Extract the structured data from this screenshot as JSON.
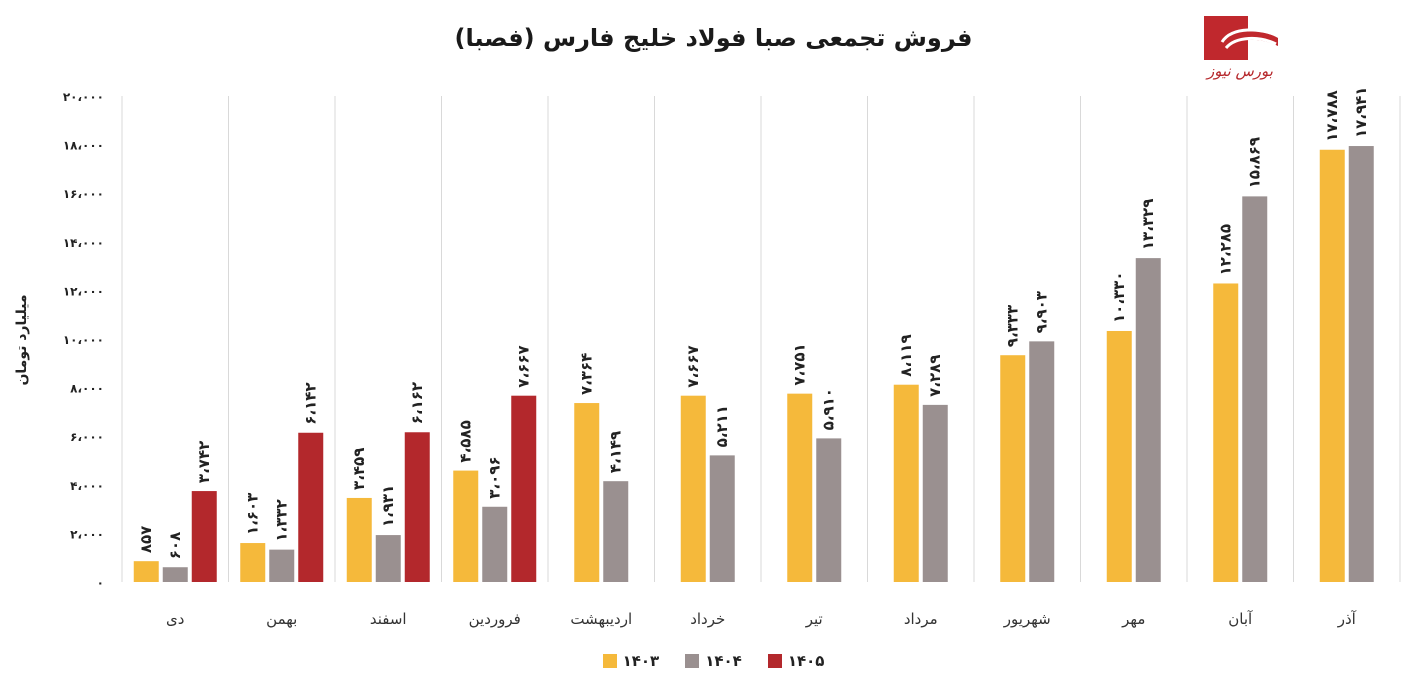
{
  "brand": {
    "logo_text": "بورس نیوز",
    "color": "#c0282d"
  },
  "chart_data": {
    "type": "bar",
    "title": "فروش تجمعی صبا فولاد خلیج فارس (فصبا)",
    "ylabel": "میلیارد تومان",
    "xlabel": "",
    "ylim": [
      0,
      20000
    ],
    "yticks": [
      0,
      2000,
      4000,
      6000,
      8000,
      10000,
      12000,
      14000,
      16000,
      18000,
      20000
    ],
    "ytick_labels": [
      "۰",
      "۲،۰۰۰",
      "۴،۰۰۰",
      "۶،۰۰۰",
      "۸،۰۰۰",
      "۱۰،۰۰۰",
      "۱۲،۰۰۰",
      "۱۴،۰۰۰",
      "۱۶،۰۰۰",
      "۱۸،۰۰۰",
      "۲۰،۰۰۰"
    ],
    "categories": [
      "دی",
      "بهمن",
      "اسفند",
      "فروردین",
      "اردیبهشت",
      "خرداد",
      "تیر",
      "مرداد",
      "شهریور",
      "مهر",
      "آبان",
      "آذر"
    ],
    "series": [
      {
        "name": "۱۴۰۳",
        "color": "#f5b93b",
        "values": [
          857,
          1603,
          3459,
          4585,
          7364,
          7667,
          7751,
          8119,
          9333,
          10330,
          12285,
          17788
        ],
        "labels": [
          "۸۵۷",
          "۱،۶۰۳",
          "۳،۴۵۹",
          "۴،۵۸۵",
          "۷،۳۶۴",
          "۷،۶۶۷",
          "۷،۷۵۱",
          "۸،۱۱۹",
          "۹،۳۳۳",
          "۱۰،۳۳۰",
          "۱۲،۲۸۵",
          "۱۷،۷۸۸"
        ]
      },
      {
        "name": "۱۴۰۴",
        "color": "#9a9090",
        "values": [
          608,
          1332,
          1931,
          3096,
          4149,
          5211,
          5910,
          7289,
          9903,
          13329,
          15869,
          17941
        ],
        "labels": [
          "۶۰۸",
          "۱،۳۳۲",
          "۱،۹۳۱",
          "۳،۰۹۶",
          "۴،۱۴۹",
          "۵،۲۱۱",
          "۵،۹۱۰",
          "۷،۲۸۹",
          "۹،۹۰۳",
          "۱۳،۳۲۹",
          "۱۵،۸۶۹",
          "۱۷،۹۴۱"
        ]
      },
      {
        "name": "۱۴۰۵",
        "color": "#b3282c",
        "values": [
          3742,
          6142,
          6162,
          7667,
          null,
          null,
          null,
          null,
          null,
          null,
          null,
          null
        ],
        "labels": [
          "۳،۷۴۲",
          "۶،۱۴۲",
          "۶،۱۶۲",
          "۷،۶۶۷",
          "",
          "",
          "",
          "",
          "",
          "",
          "",
          ""
        ]
      }
    ],
    "grid": "vertical-separators",
    "legend": "bottom-center"
  }
}
